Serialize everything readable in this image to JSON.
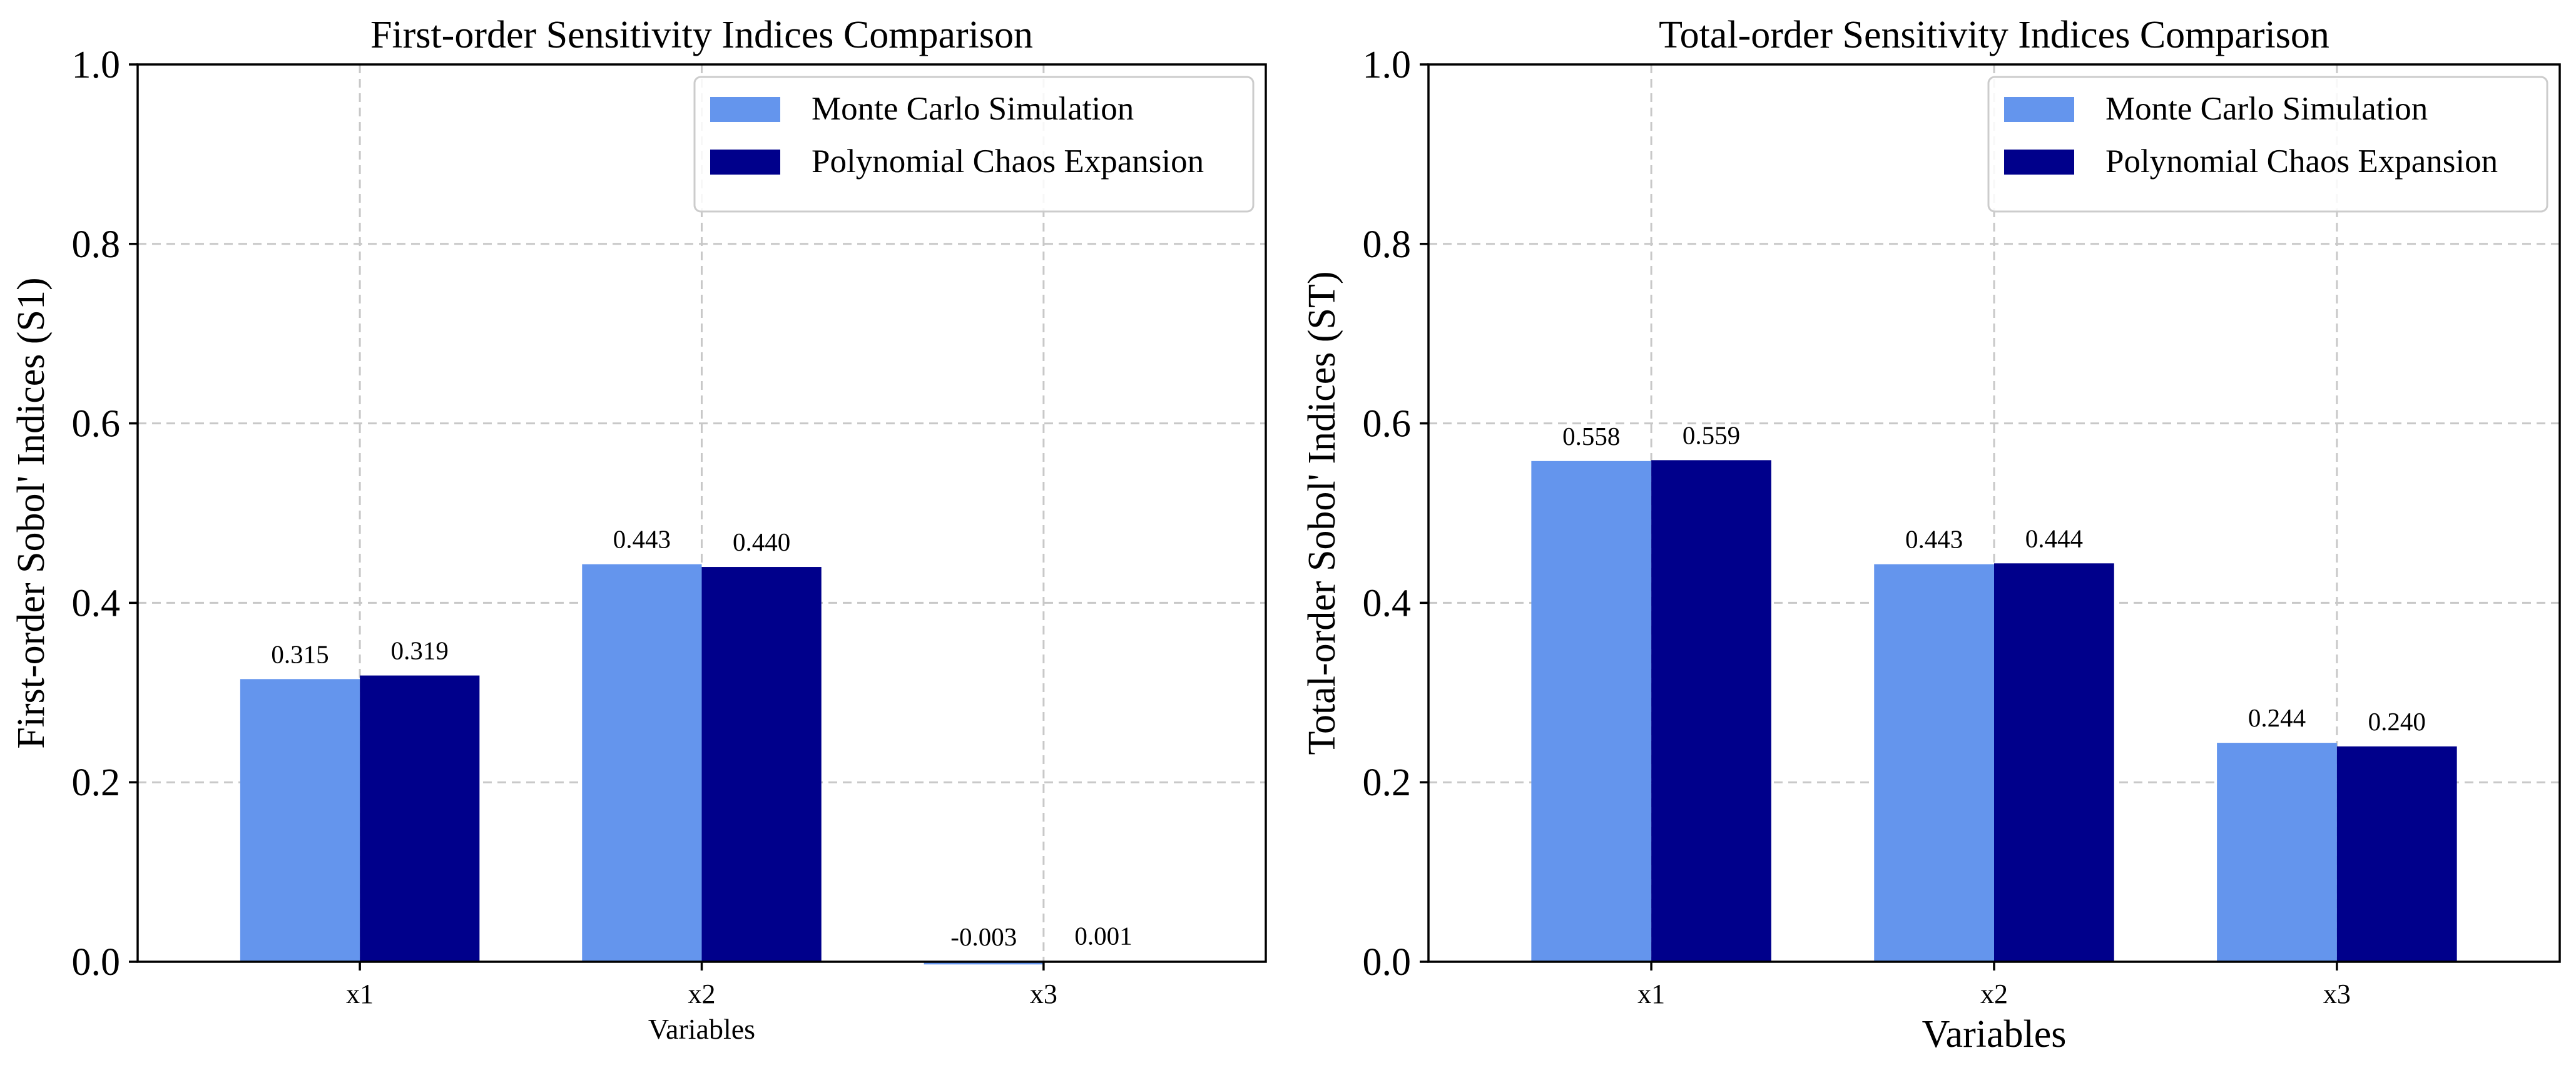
{
  "chart_data": [
    {
      "type": "bar",
      "title": "First-order Sensitivity Indices Comparison",
      "xlabel": "Variables",
      "ylabel": "First-order Sobol' Indices (S1)",
      "ylim": [
        0,
        1.0
      ],
      "yticks": [
        "0.0",
        "0.2",
        "0.4",
        "0.6",
        "0.8",
        "1.0"
      ],
      "categories": [
        "x1",
        "x2",
        "x3"
      ],
      "grid": true,
      "legend_position": "top-right",
      "series": [
        {
          "name": "Monte Carlo Simulation",
          "color": "#6495ED",
          "values": [
            0.315,
            0.443,
            -0.003
          ],
          "labels": [
            "0.315",
            "0.443",
            "-0.003"
          ]
        },
        {
          "name": "Polynomial Chaos Expansion",
          "color": "#00008B",
          "values": [
            0.319,
            0.44,
            0.001
          ],
          "labels": [
            "0.319",
            "0.440",
            "0.001"
          ]
        }
      ]
    },
    {
      "type": "bar",
      "title": "Total-order Sensitivity Indices Comparison",
      "xlabel": "Variables",
      "ylabel": "Total-order Sobol' Indices (ST)",
      "ylim": [
        0,
        1.0
      ],
      "yticks": [
        "0.0",
        "0.2",
        "0.4",
        "0.6",
        "0.8",
        "1.0"
      ],
      "categories": [
        "x1",
        "x2",
        "x3"
      ],
      "grid": true,
      "legend_position": "top-right",
      "series": [
        {
          "name": "Monte Carlo Simulation",
          "color": "#6495ED",
          "values": [
            0.558,
            0.443,
            0.244
          ],
          "labels": [
            "0.558",
            "0.443",
            "0.244"
          ]
        },
        {
          "name": "Polynomial Chaos Expansion",
          "color": "#00008B",
          "values": [
            0.559,
            0.444,
            0.24
          ],
          "labels": [
            "0.559",
            "0.444",
            "0.240"
          ]
        }
      ]
    }
  ]
}
